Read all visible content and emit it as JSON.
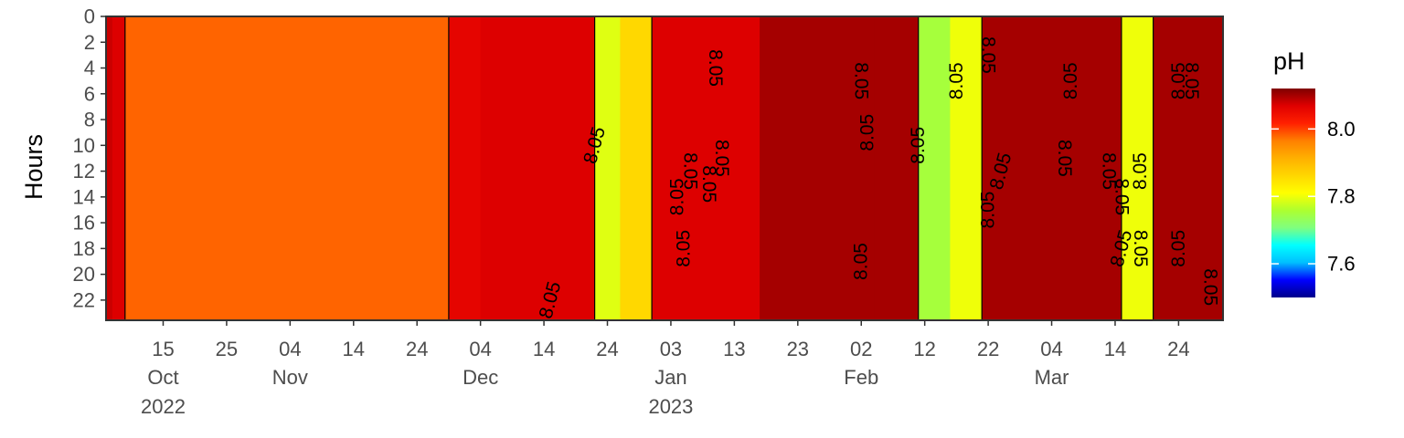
{
  "chart_data": {
    "type": "heatmap",
    "title": "",
    "xlabel": "",
    "ylabel": "Hours",
    "xlim": [
      "2022-10-06",
      "2023-03-31"
    ],
    "ylim": [
      0,
      23
    ],
    "y_ticks": [
      "0",
      "2",
      "4",
      "6",
      "8",
      "10",
      "12",
      "14",
      "16",
      "18",
      "20",
      "22"
    ],
    "x_ticks": [
      {
        "date": "2022-10-15",
        "day": "15",
        "month": "Oct",
        "year": "2022"
      },
      {
        "date": "2022-10-25",
        "day": "25",
        "month": "",
        "year": ""
      },
      {
        "date": "2022-11-04",
        "day": "04",
        "month": "Nov",
        "year": ""
      },
      {
        "date": "2022-11-14",
        "day": "14",
        "month": "",
        "year": ""
      },
      {
        "date": "2022-11-24",
        "day": "24",
        "month": "",
        "year": ""
      },
      {
        "date": "2022-12-04",
        "day": "04",
        "month": "Dec",
        "year": ""
      },
      {
        "date": "2022-12-14",
        "day": "14",
        "month": "",
        "year": ""
      },
      {
        "date": "2022-12-24",
        "day": "24",
        "month": "",
        "year": ""
      },
      {
        "date": "2023-01-03",
        "day": "03",
        "month": "Jan",
        "year": "2023"
      },
      {
        "date": "2023-01-13",
        "day": "13",
        "month": "",
        "year": ""
      },
      {
        "date": "2023-01-23",
        "day": "23",
        "month": "",
        "year": ""
      },
      {
        "date": "2023-02-02",
        "day": "02",
        "month": "Feb",
        "year": ""
      },
      {
        "date": "2023-02-12",
        "day": "12",
        "month": "",
        "year": ""
      },
      {
        "date": "2023-02-22",
        "day": "22",
        "month": "",
        "year": ""
      },
      {
        "date": "2023-03-04",
        "day": "04",
        "month": "Mar",
        "year": ""
      },
      {
        "date": "2023-03-14",
        "day": "14",
        "month": "",
        "year": ""
      },
      {
        "date": "2023-03-24",
        "day": "24",
        "month": "",
        "year": ""
      }
    ],
    "legend": {
      "title": "pH",
      "position": "right",
      "range": [
        7.5,
        8.12
      ],
      "ticks": [
        {
          "value": 8.0,
          "label": "8.0"
        },
        {
          "value": 7.8,
          "label": "7.8"
        },
        {
          "value": 7.6,
          "label": "7.6"
        }
      ],
      "colors": [
        "#00008b",
        "#0000ff",
        "#00bfff",
        "#00ffff",
        "#7fff7f",
        "#adff2f",
        "#ffff00",
        "#ffd700",
        "#ffb000",
        "#ff8000",
        "#ff2000",
        "#e00000",
        "#7f0000"
      ]
    },
    "grid": false,
    "contour_level": 8.05,
    "contour_labels": [
      {
        "date": "2022-12-22",
        "hour": 10,
        "text": "8.05",
        "angle": -75
      },
      {
        "date": "2022-12-15",
        "hour": 22,
        "text": "8.05",
        "angle": -75
      },
      {
        "date": "2023-01-04",
        "hour": 14,
        "text": "8.05",
        "angle": -90
      },
      {
        "date": "2023-01-05",
        "hour": 18,
        "text": "8.05",
        "angle": -90
      },
      {
        "date": "2023-01-06",
        "hour": 12,
        "text": "8.05",
        "angle": 90
      },
      {
        "date": "2023-01-09",
        "hour": 13,
        "text": "8.05",
        "angle": 90
      },
      {
        "date": "2023-01-10",
        "hour": 4,
        "text": "8.05",
        "angle": 90
      },
      {
        "date": "2023-01-11",
        "hour": 11,
        "text": "8.05",
        "angle": 90
      },
      {
        "date": "2023-02-02",
        "hour": 5,
        "text": "8.05",
        "angle": 90
      },
      {
        "date": "2023-02-03",
        "hour": 9,
        "text": "8.05",
        "angle": -90
      },
      {
        "date": "2023-02-02",
        "hour": 19,
        "text": "8.05",
        "angle": -90
      },
      {
        "date": "2023-02-11",
        "hour": 10,
        "text": "8.05",
        "angle": -90
      },
      {
        "date": "2023-02-17",
        "hour": 5,
        "text": "8.05",
        "angle": -90
      },
      {
        "date": "2023-02-22",
        "hour": 3,
        "text": "8.05",
        "angle": 90
      },
      {
        "date": "2023-02-22",
        "hour": 15,
        "text": "8.05",
        "angle": -90
      },
      {
        "date": "2023-02-24",
        "hour": 12,
        "text": "8.05",
        "angle": -75
      },
      {
        "date": "2023-03-07",
        "hour": 5,
        "text": "8.05",
        "angle": -90
      },
      {
        "date": "2023-03-06",
        "hour": 11,
        "text": "8.05",
        "angle": 90
      },
      {
        "date": "2023-03-13",
        "hour": 12,
        "text": "8.05",
        "angle": 90
      },
      {
        "date": "2023-03-15",
        "hour": 14,
        "text": "8.05",
        "angle": 90
      },
      {
        "date": "2023-03-15",
        "hour": 18,
        "text": "8.05",
        "angle": -75
      },
      {
        "date": "2023-03-18",
        "hour": 12,
        "text": "8.05",
        "angle": -90
      },
      {
        "date": "2023-03-18",
        "hour": 18,
        "text": "8.05",
        "angle": 90
      },
      {
        "date": "2023-03-24",
        "hour": 5,
        "text": "8.05",
        "angle": -90
      },
      {
        "date": "2023-03-24",
        "hour": 18,
        "text": "8.05",
        "angle": -90
      },
      {
        "date": "2023-03-26",
        "hour": 5,
        "text": "8.05",
        "angle": 90
      },
      {
        "date": "2023-03-29",
        "hour": 21,
        "text": "8.05",
        "angle": 90
      }
    ],
    "regions": [
      {
        "from": "2022-10-06",
        "to": "2022-10-07",
        "value": 8.08
      },
      {
        "from": "2022-10-07",
        "to": "2022-10-09",
        "value": 8.07
      },
      {
        "from": "2022-10-09",
        "to": "2022-11-21",
        "value": 7.98
      },
      {
        "from": "2022-11-21",
        "to": "2022-11-29",
        "value": 7.98
      },
      {
        "from": "2022-11-29",
        "to": "2022-12-04",
        "value": 8.06
      },
      {
        "from": "2022-12-04",
        "to": "2022-12-13",
        "value": 8.07
      },
      {
        "from": "2022-12-13",
        "to": "2022-12-22",
        "value": 8.07
      },
      {
        "from": "2022-12-22",
        "to": "2022-12-26",
        "value": 7.79
      },
      {
        "from": "2022-12-26",
        "to": "2022-12-31",
        "value": 7.86
      },
      {
        "from": "2022-12-31",
        "to": "2023-01-17",
        "value": 8.07
      },
      {
        "from": "2023-01-17",
        "to": "2023-02-04",
        "value": 8.1
      },
      {
        "from": "2023-02-04",
        "to": "2023-02-11",
        "value": 8.1
      },
      {
        "from": "2023-02-11",
        "to": "2023-02-16",
        "value": 7.75
      },
      {
        "from": "2023-02-16",
        "to": "2023-02-21",
        "value": 7.8
      },
      {
        "from": "2023-02-21",
        "to": "2023-03-15",
        "value": 8.1
      },
      {
        "from": "2023-03-15",
        "to": "2023-03-20",
        "value": 7.8
      },
      {
        "from": "2023-03-20",
        "to": "2023-03-31",
        "value": 8.1
      }
    ]
  }
}
